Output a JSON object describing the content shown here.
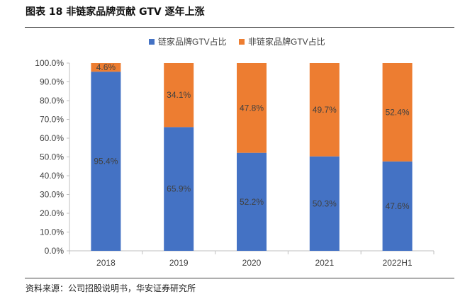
{
  "title": "图表 18  非链家品牌贡献 GTV 逐年上涨",
  "source": "资料来源：公司招股说明书，华安证券研究所",
  "chart_data": {
    "type": "bar",
    "stacked": true,
    "categories": [
      "2018",
      "2019",
      "2020",
      "2021",
      "2022H1"
    ],
    "series": [
      {
        "name": "链家品牌GTV占比",
        "color": "#4472C4",
        "values": [
          95.4,
          65.9,
          52.2,
          50.3,
          47.6
        ]
      },
      {
        "name": "非链家品牌GTV占比",
        "color": "#ED7D31",
        "values": [
          4.6,
          34.1,
          47.8,
          49.7,
          52.4
        ]
      }
    ],
    "value_labels": {
      "series_0": [
        "95.4%",
        "65.9%",
        "52.2%",
        "50.3%",
        "47.6%"
      ],
      "series_1": [
        "4.6%",
        "34.1%",
        "47.8%",
        "49.7%",
        "52.4%"
      ]
    },
    "y_ticks": [
      "0.0%",
      "10.0%",
      "20.0%",
      "30.0%",
      "40.0%",
      "50.0%",
      "60.0%",
      "70.0%",
      "80.0%",
      "90.0%",
      "100.0%"
    ],
    "ylim": [
      0,
      100
    ],
    "legend_position": "top-center",
    "grid": false
  }
}
